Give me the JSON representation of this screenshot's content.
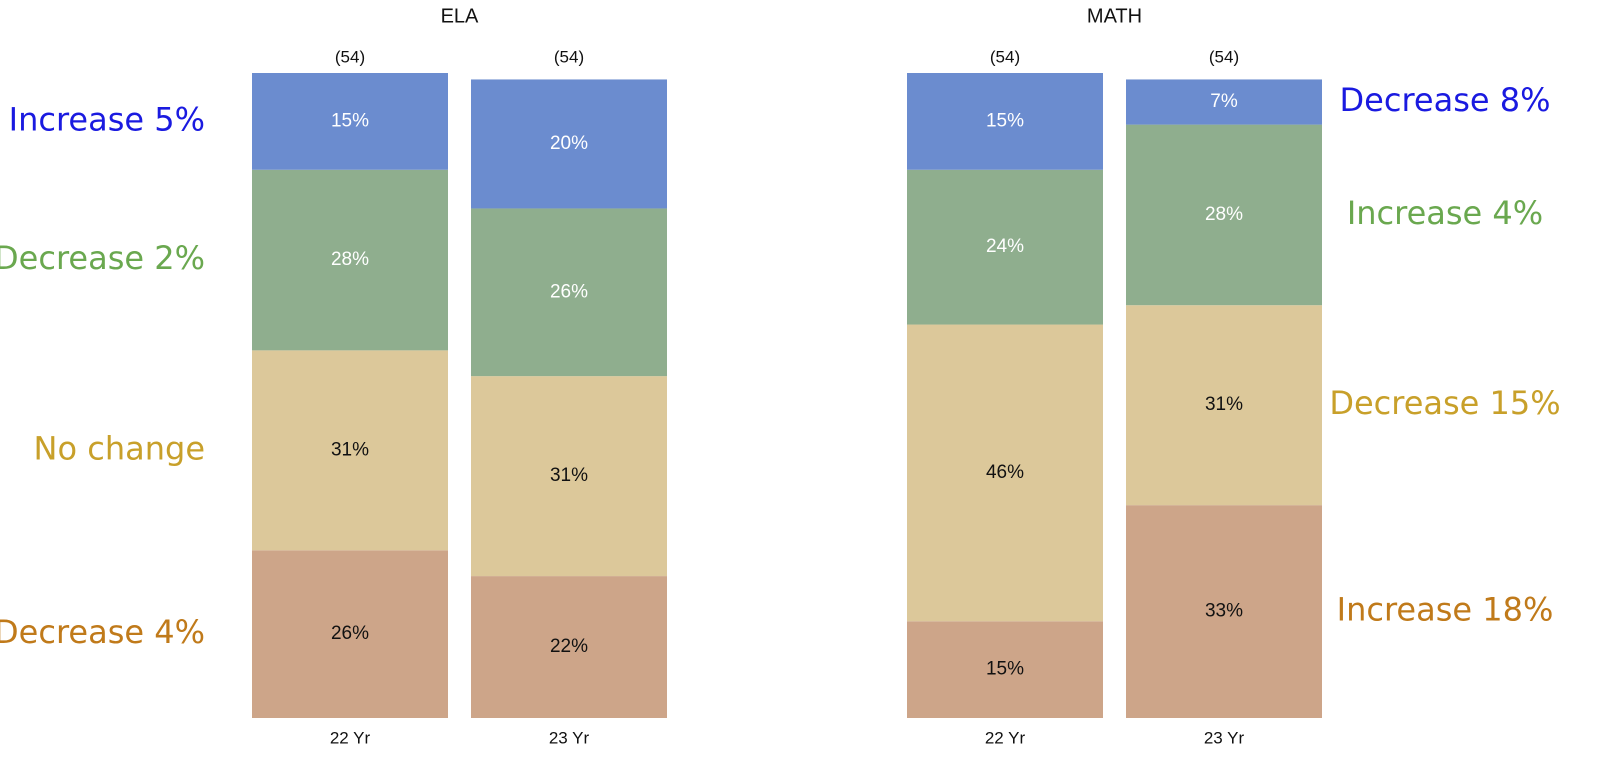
{
  "chart_data": [
    {
      "type": "stacked_bar",
      "title": "ELA",
      "categories": [
        "22 Yr",
        "23 Yr"
      ],
      "n_labels": [
        "(54)",
        "(54)"
      ],
      "ylim": [
        0,
        100
      ],
      "annotation_side": "left",
      "series": [
        {
          "color": "#cda589",
          "label_color": "#111111",
          "values": [
            26,
            22
          ],
          "value_labels": [
            "26%",
            "22%"
          ],
          "annotation": "Decrease 4%",
          "annotation_color": "#c07a1a"
        },
        {
          "color": "#dcc89a",
          "label_color": "#111111",
          "values": [
            31,
            31
          ],
          "value_labels": [
            "31%",
            "31%"
          ],
          "annotation": "No change",
          "annotation_color": "#c8a02a"
        },
        {
          "color": "#8fae8e",
          "label_color": "#ffffff",
          "values": [
            28,
            26
          ],
          "value_labels": [
            "28%",
            "26%"
          ],
          "annotation": "Decrease 2%",
          "annotation_color": "#6aa84f"
        },
        {
          "color": "#6b8ccf",
          "label_color": "#ffffff",
          "values": [
            15,
            20
          ],
          "value_labels": [
            "15%",
            "20%"
          ],
          "annotation": "Increase 5%",
          "annotation_color": "#1a1ae0"
        }
      ]
    },
    {
      "type": "stacked_bar",
      "title": "MATH",
      "categories": [
        "22 Yr",
        "23 Yr"
      ],
      "n_labels": [
        "(54)",
        "(54)"
      ],
      "ylim": [
        0,
        100
      ],
      "annotation_side": "right",
      "series": [
        {
          "color": "#cda589",
          "label_color": "#111111",
          "values": [
            15,
            33
          ],
          "value_labels": [
            "15%",
            "33%"
          ],
          "annotation": "Increase 18%",
          "annotation_color": "#c07a1a"
        },
        {
          "color": "#dcc89a",
          "label_color": "#111111",
          "values": [
            46,
            31
          ],
          "value_labels": [
            "46%",
            "31%"
          ],
          "annotation": "Decrease 15%",
          "annotation_color": "#c8a02a"
        },
        {
          "color": "#8fae8e",
          "label_color": "#ffffff",
          "values": [
            24,
            28
          ],
          "value_labels": [
            "24%",
            "28%"
          ],
          "annotation": "Increase 4%",
          "annotation_color": "#6aa84f"
        },
        {
          "color": "#6b8ccf",
          "label_color": "#ffffff",
          "values": [
            15,
            7
          ],
          "value_labels": [
            "15%",
            "7%"
          ],
          "annotation": "Decrease 8%",
          "annotation_color": "#1a1ae0"
        }
      ]
    }
  ]
}
